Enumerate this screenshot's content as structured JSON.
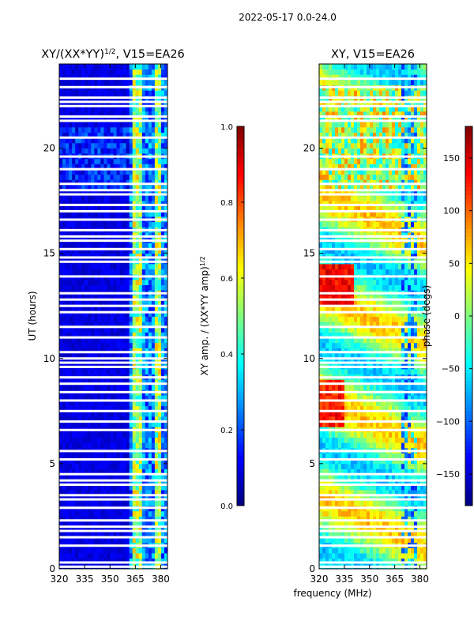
{
  "suptitle": "2022-05-17 0.0-24.0",
  "chart_data": [
    {
      "type": "heatmap",
      "title_prefix": "XY/(XX*YY)",
      "title_exponent": "1/2",
      "title_suffix": ", V15=EA26",
      "xlabel": "",
      "ylabel": "UT (hours)",
      "xlim": [
        320,
        384
      ],
      "ylim": [
        0,
        24
      ],
      "xticks": [
        320,
        335,
        350,
        365,
        380
      ],
      "yticks": [
        0,
        5,
        10,
        15,
        20
      ],
      "pattern": "normalized",
      "colorbar": {
        "label_prefix": "XY amp. / (XX*YY amp)",
        "label_exponent": "1/2",
        "range": [
          0.0,
          1.0
        ],
        "ticks": [
          "0.0",
          "0.2",
          "0.4",
          "0.6",
          "0.8",
          "1.0"
        ],
        "colormap": "jet"
      }
    },
    {
      "type": "heatmap",
      "title": "XY, V15=EA26",
      "xlabel": "frequency (MHz)",
      "ylabel": "",
      "xlim": [
        320,
        384
      ],
      "ylim": [
        0,
        24
      ],
      "xticks": [
        320,
        335,
        350,
        365,
        380
      ],
      "yticks": [
        0,
        5,
        10,
        15,
        20
      ],
      "pattern": "phase",
      "colorbar": {
        "label": "phase (degs)",
        "range": [
          -180,
          180
        ],
        "ticks": [
          "-150",
          "-100",
          "-50",
          "0",
          "50",
          "100",
          "150"
        ],
        "colormap": "jet"
      }
    }
  ],
  "blank_hours": [
    0.1,
    0.3,
    1.1,
    1.5,
    1.8,
    2.0,
    2.3,
    2.9,
    3.3,
    3.5,
    4.0,
    4.2,
    4.5,
    5.2,
    5.6,
    6.6,
    7.0,
    7.5,
    8.0,
    8.4,
    8.8,
    9.1,
    9.6,
    9.8,
    10.0,
    10.3,
    11.0,
    11.5,
    12.2,
    12.5,
    12.8,
    13.1,
    13.9,
    14.6,
    14.8,
    15.2,
    15.6,
    15.8,
    16.1,
    16.6,
    17.0,
    17.3,
    17.8,
    18.0,
    18.3,
    19.0,
    19.6,
    20.5,
    21.3,
    21.5,
    22.0,
    22.2,
    22.4,
    22.9,
    23.3
  ]
}
